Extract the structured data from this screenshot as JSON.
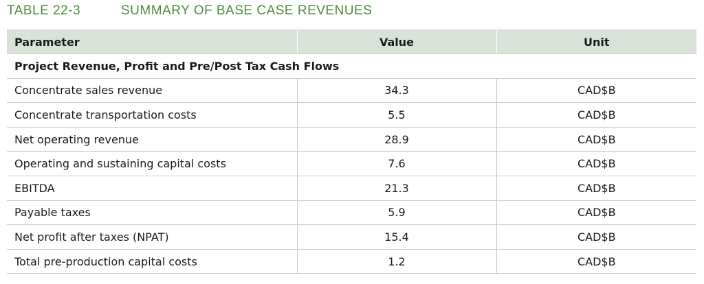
{
  "caption": {
    "number": "TABLE 22-3",
    "title": "SUMMARY OF BASE CASE REVENUES"
  },
  "colors": {
    "caption": "#4e8a3e",
    "header_bg": "#d8e2d8",
    "rule": "#c9c9c9"
  },
  "table": {
    "headers": {
      "parameter": "Parameter",
      "value": "Value",
      "unit": "Unit"
    },
    "section": "Project Revenue, Profit and Pre/Post Tax Cash Flows",
    "rows": [
      {
        "parameter": "Concentrate sales revenue",
        "value": "34.3",
        "unit": "CAD$B"
      },
      {
        "parameter": "Concentrate transportation costs",
        "value": "5.5",
        "unit": "CAD$B"
      },
      {
        "parameter": "Net operating revenue",
        "value": "28.9",
        "unit": "CAD$B"
      },
      {
        "parameter": "Operating and sustaining capital costs",
        "value": "7.6",
        "unit": "CAD$B"
      },
      {
        "parameter": "EBITDA",
        "value": "21.3",
        "unit": "CAD$B"
      },
      {
        "parameter": "Payable taxes",
        "value": "5.9",
        "unit": "CAD$B"
      },
      {
        "parameter": "Net profit after taxes (NPAT)",
        "value": "15.4",
        "unit": "CAD$B"
      },
      {
        "parameter": "Total pre-production capital costs",
        "value": "1.2",
        "unit": "CAD$B"
      }
    ]
  }
}
